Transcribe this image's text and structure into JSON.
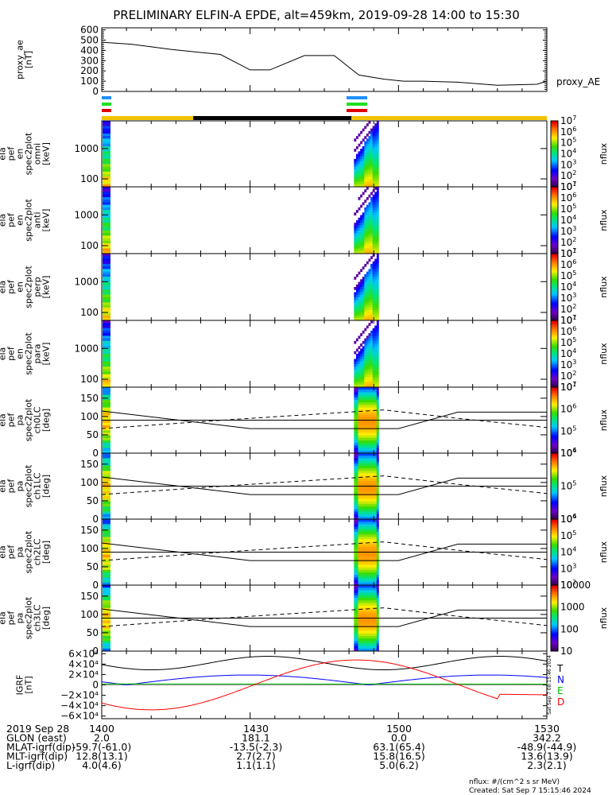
{
  "title": "PRELIMINARY ELFIN-A EPDE, alt=459km, 2019-09-28 14:00 to 15:30",
  "chart_data": [
    {
      "type": "line",
      "panel": "proxy_ae",
      "ylabel": [
        "proxy_ae",
        "[nT]"
      ],
      "series_label": "proxy_AE",
      "yticks": [
        "0",
        "100",
        "200",
        "300",
        "400",
        "500",
        "600"
      ],
      "ylim": [
        0,
        620
      ],
      "x_minutes": [
        0,
        6,
        14,
        24,
        30,
        34,
        41,
        47,
        52,
        57,
        61,
        65,
        72,
        80,
        88,
        90
      ],
      "values": [
        480,
        460,
        410,
        360,
        210,
        210,
        350,
        350,
        160,
        120,
        100,
        100,
        90,
        60,
        70,
        100
      ]
    },
    {
      "type": "heatmap",
      "panel": "omni",
      "ylabel": [
        "ela",
        "pef",
        "en",
        "spec2plot",
        "omni",
        "[keV]"
      ],
      "yticks": [
        "100",
        "1000"
      ],
      "colorbar": {
        "label": "nflux",
        "ticks": [
          "10^1",
          "10^2",
          "10^3",
          "10^4",
          "10^5",
          "10^6",
          "10^7"
        ]
      }
    },
    {
      "type": "heatmap",
      "panel": "anti",
      "ylabel": [
        "ela",
        "pef",
        "en",
        "spec2plot",
        "anti",
        "[keV]"
      ],
      "yticks": [
        "100",
        "1000"
      ],
      "colorbar": {
        "label": "nflux",
        "ticks": [
          "10^1",
          "10^2",
          "10^3",
          "10^4",
          "10^5",
          "10^6",
          "10^7"
        ]
      }
    },
    {
      "type": "heatmap",
      "panel": "perp",
      "ylabel": [
        "ela",
        "pef",
        "en",
        "spec2plot",
        "perp",
        "[keV]"
      ],
      "yticks": [
        "100",
        "1000"
      ],
      "colorbar": {
        "label": "nflux",
        "ticks": [
          "10^1",
          "10^2",
          "10^3",
          "10^4",
          "10^5",
          "10^6",
          "10^7"
        ]
      }
    },
    {
      "type": "heatmap",
      "panel": "para",
      "ylabel": [
        "ela",
        "pef",
        "en",
        "spec2plot",
        "para",
        "[keV]"
      ],
      "yticks": [
        "100",
        "1000"
      ],
      "colorbar": {
        "label": "nflux",
        "ticks": [
          "10^1",
          "10^2",
          "10^3",
          "10^4",
          "10^5",
          "10^6",
          "10^7"
        ]
      }
    },
    {
      "type": "heatmap",
      "panel": "ch0LC",
      "ylabel": [
        "ela",
        "pef",
        "pa",
        "spec2plot",
        "ch0LC",
        "[deg]"
      ],
      "yticks": [
        "0",
        "50",
        "100",
        "150"
      ],
      "ylim": [
        0,
        180
      ],
      "colorbar": {
        "label": "nflux",
        "ticks": [
          "10^4",
          "10^5",
          "10^6",
          "10^7"
        ]
      }
    },
    {
      "type": "heatmap",
      "panel": "ch1LC",
      "ylabel": [
        "ela",
        "pef",
        "pa",
        "spec2plot",
        "ch1LC",
        "[deg]"
      ],
      "yticks": [
        "0",
        "50",
        "100",
        "150"
      ],
      "ylim": [
        0,
        180
      ],
      "colorbar": {
        "label": "nflux",
        "ticks": [
          "10^4",
          "10^5",
          "10^6"
        ]
      }
    },
    {
      "type": "heatmap",
      "panel": "ch2LC",
      "ylabel": [
        "ela",
        "pef",
        "pa",
        "spec2plot",
        "ch2LC",
        "[deg]"
      ],
      "yticks": [
        "0",
        "50",
        "100",
        "150"
      ],
      "ylim": [
        0,
        180
      ],
      "colorbar": {
        "label": "nflux",
        "ticks": [
          "10^2",
          "10^3",
          "10^4",
          "10^5",
          "10^6"
        ]
      }
    },
    {
      "type": "heatmap",
      "panel": "ch3LC",
      "ylabel": [
        "ela",
        "pef",
        "pa",
        "spec2plot",
        "ch3LC",
        "[deg]"
      ],
      "yticks": [
        "0",
        "50",
        "100",
        "150"
      ],
      "ylim": [
        0,
        180
      ],
      "colorbar": {
        "label": "nflux",
        "ticks": [
          "10",
          "100",
          "1000",
          "10000"
        ]
      }
    },
    {
      "type": "line",
      "panel": "IGRF",
      "ylabel": [
        "IGRF",
        "[nT]"
      ],
      "yticks": [
        "−6×10⁴",
        "−4×10⁴",
        "−2×10⁴",
        "0",
        "2×10⁴",
        "4×10⁴",
        "6×10⁴"
      ],
      "ylim": [
        -65000,
        65000
      ],
      "series": [
        {
          "name": "T",
          "color": "#000000"
        },
        {
          "name": "N",
          "color": "#0000ff"
        },
        {
          "name": "E",
          "color": "#00c000"
        },
        {
          "name": "D",
          "color": "#ff0000"
        }
      ],
      "stamp": "Sat Sep  7 08:15:46 2024"
    }
  ],
  "xaxis": {
    "rows": [
      {
        "label": "2019 Sep 28",
        "values": [
          "1400",
          "1430",
          "1500",
          "1530"
        ]
      },
      {
        "label": "GLON (east)",
        "values": [
          "2.0",
          "181.1",
          "0.0",
          "342.2"
        ]
      },
      {
        "label": "MLAT-igrf(dip)",
        "values": [
          "-59.7(-61.0)",
          "-13.5(-2.3)",
          "63.1(65.4)",
          "-48.9(-44.9)"
        ]
      },
      {
        "label": "MLT-igrf(dip)",
        "values": [
          "12.8(13.1)",
          "2.7(2.7)",
          "15.8(16.5)",
          "13.6(13.9)"
        ]
      },
      {
        "label": "L-igrf(dip)",
        "values": [
          "4.0(4.6)",
          "1.1(1.1)",
          "5.0(6.2)",
          "2.3(2.1)"
        ]
      }
    ]
  },
  "footer": {
    "units": "nflux: #/(cm^2 s sr MeV)",
    "created": "Created: Sat Sep  7 15:15:46 2024"
  }
}
